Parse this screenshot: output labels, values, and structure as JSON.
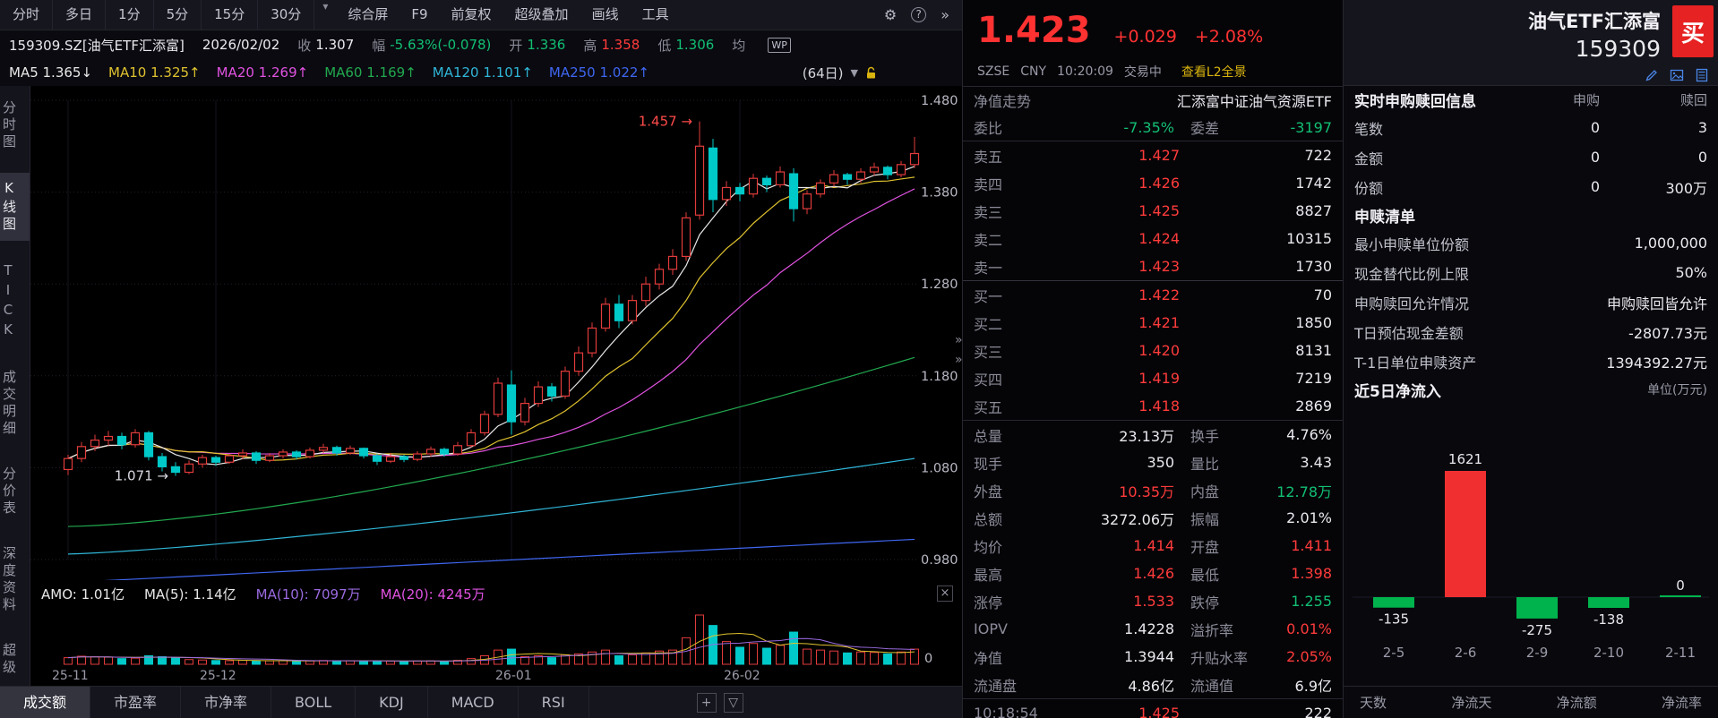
{
  "ui": {
    "gear_glyph": "⚙",
    "help_glyph": "?",
    "more_glyph": "»",
    "caret_down": "▾",
    "range_caret": "▼",
    "close_glyph": "×",
    "plus_glyph": "+",
    "panel_caret": "▽",
    "collapse_glyph": "»"
  },
  "toolbar": {
    "period_tabs": [
      "分时",
      "多日",
      "1分",
      "5分",
      "15分",
      "30分"
    ],
    "actions": [
      "综合屏",
      "F9",
      "前复权",
      "超级叠加",
      "画线",
      "工具"
    ]
  },
  "quote_bar": {
    "symbol": "159309.SZ[油气ETF汇添富]",
    "date": "2026/02/02",
    "fields": [
      {
        "label": "收",
        "value": "1.307",
        "cls": "w"
      },
      {
        "label": "幅",
        "value": "-5.63%(-0.078)",
        "cls": "g"
      },
      {
        "label": "开",
        "value": "1.336",
        "cls": "g"
      },
      {
        "label": "高",
        "value": "1.358",
        "cls": "r"
      },
      {
        "label": "低",
        "value": "1.306",
        "cls": "g"
      },
      {
        "label": "均",
        "value": "",
        "cls": "w"
      }
    ],
    "wp": "WP"
  },
  "ma_bar": {
    "items": [
      {
        "label": "MA5 1.365↓",
        "color": "#e8e8e8"
      },
      {
        "label": "MA10 1.325↑",
        "color": "#dfc22f"
      },
      {
        "label": "MA20 1.269↑",
        "color": "#e052e0"
      },
      {
        "label": "MA60 1.169↑",
        "color": "#22a94f"
      },
      {
        "label": "MA120 1.101↑",
        "color": "#30b6d8"
      },
      {
        "label": "MA250 1.022↑",
        "color": "#3f66f0"
      }
    ],
    "range_label": "(64日)"
  },
  "sidebar": {
    "items": [
      {
        "label": "分时图",
        "active": false
      },
      {
        "label": "K线图",
        "active": true
      },
      {
        "label": "TICK",
        "active": false
      },
      {
        "label": "成交明细",
        "active": false
      },
      {
        "label": "分价表",
        "active": false
      },
      {
        "label": "深度资料",
        "active": false
      },
      {
        "label": "超级",
        "active": false
      }
    ]
  },
  "volume_bar": {
    "amo": "AMO: 1.01亿",
    "ma5": "MA(5): 1.14亿",
    "ma10": "MA(10): 7097万",
    "ma20": "MA(20): 4245万",
    "zero": "0"
  },
  "bottom_tabs": [
    "成交额",
    "市盈率",
    "市净率",
    "BOLL",
    "KDJ",
    "MACD",
    "RSI"
  ],
  "quote_panel": {
    "price": "1.423",
    "change": "+0.029",
    "pct": "+2.08%",
    "exchange": "SZSE",
    "currency": "CNY",
    "time": "10:20:09",
    "status": "交易中",
    "l2": "查看L2全景",
    "nav_label": "净值走势",
    "nav_name": "汇添富中证油气资源ETF",
    "weibi_label": "委比",
    "weibi": "-7.35%",
    "weicha_label": "委差",
    "weicha": "-3197",
    "asks": [
      {
        "label": "卖五",
        "price": "1.427",
        "vol": "722"
      },
      {
        "label": "卖四",
        "price": "1.426",
        "vol": "1742"
      },
      {
        "label": "卖三",
        "price": "1.425",
        "vol": "8827"
      },
      {
        "label": "卖二",
        "price": "1.424",
        "vol": "10315"
      },
      {
        "label": "卖一",
        "price": "1.423",
        "vol": "1730"
      }
    ],
    "bids": [
      {
        "label": "买一",
        "price": "1.422",
        "vol": "70"
      },
      {
        "label": "买二",
        "price": "1.421",
        "vol": "1850"
      },
      {
        "label": "买三",
        "price": "1.420",
        "vol": "8131"
      },
      {
        "label": "买四",
        "price": "1.419",
        "vol": "7219"
      },
      {
        "label": "买五",
        "price": "1.418",
        "vol": "2869"
      }
    ],
    "stats": [
      {
        "l1": "总量",
        "v1": "23.13万",
        "c1": "w",
        "l2": "换手",
        "v2": "4.76%",
        "c2": "w"
      },
      {
        "l1": "现手",
        "v1": "350",
        "c1": "w",
        "l2": "量比",
        "v2": "3.43",
        "c2": "w"
      },
      {
        "l1": "外盘",
        "v1": "10.35万",
        "c1": "r",
        "l2": "内盘",
        "v2": "12.78万",
        "c2": "g"
      },
      {
        "l1": "总额",
        "v1": "3272.06万",
        "c1": "w",
        "l2": "振幅",
        "v2": "2.01%",
        "c2": "w"
      },
      {
        "l1": "均价",
        "v1": "1.414",
        "c1": "r",
        "l2": "开盘",
        "v2": "1.411",
        "c2": "r"
      },
      {
        "l1": "最高",
        "v1": "1.426",
        "c1": "r",
        "l2": "最低",
        "v2": "1.398",
        "c2": "r"
      },
      {
        "l1": "涨停",
        "v1": "1.533",
        "c1": "r",
        "l2": "跌停",
        "v2": "1.255",
        "c2": "g"
      },
      {
        "l1": "IOPV",
        "v1": "1.4228",
        "c1": "w",
        "l2": "溢折率",
        "v2": "0.01%",
        "c2": "r"
      },
      {
        "l1": "净值",
        "v1": "1.3944",
        "c1": "w",
        "l2": "升贴水率",
        "v2": "2.05%",
        "c2": "r"
      },
      {
        "l1": "流通盘",
        "v1": "4.86亿",
        "c1": "w",
        "l2": "流通值",
        "v2": "6.9亿",
        "c2": "w"
      }
    ],
    "tick_partial": {
      "time": "10:18:54",
      "price": "1.425",
      "vol": "222"
    }
  },
  "title_block": {
    "name": "油气ETF汇添富",
    "code": "159309",
    "buy": "买"
  },
  "etf_panel": {
    "header": "实时申购赎回信息",
    "col1": "申购",
    "col2": "赎回",
    "rows": [
      {
        "label": "笔数",
        "v1": "0",
        "v2": "3"
      },
      {
        "label": "金额",
        "v1": "0",
        "v2": "0"
      },
      {
        "label": "份额",
        "v1": "0",
        "v2": "300万"
      }
    ],
    "list_header": "申赎清单",
    "info_rows": [
      {
        "label": "最小申赎单位份额",
        "value": "1,000,000"
      },
      {
        "label": "现金替代比例上限",
        "value": "50%"
      },
      {
        "label": "申购赎回允许情况",
        "value": "申购赎回皆允许"
      },
      {
        "label": "T日预估现金差额",
        "value": "-2807.73元"
      },
      {
        "label": "T-1日单位申赎资产",
        "value": "1394392.27元"
      }
    ],
    "flow_header": "近5日净流入",
    "flow_unit": "单位(万元)",
    "footer_tabs": [
      "天数",
      "净流天",
      "净流额",
      "净流率"
    ]
  },
  "chart_data": {
    "type": "candlestick",
    "y_ticks": [
      "1.480",
      "1.380",
      "1.280",
      "1.180",
      "1.080",
      "0.980"
    ],
    "x_ticks": [
      {
        "label": "25-11",
        "i": 0
      },
      {
        "label": "25-12",
        "i": 11
      },
      {
        "label": "26-01",
        "i": 33
      },
      {
        "label": "26-02",
        "i": 50
      }
    ],
    "annotations": [
      {
        "text": "1.457",
        "i": 47,
        "price": 1.457,
        "color": "#ff4a4a"
      },
      {
        "text": "1.071",
        "i": 8,
        "price": 1.071,
        "color": "#d8d8e0"
      }
    ],
    "candles": [
      [
        1.078,
        1.094,
        1.072,
        1.09
      ],
      [
        1.09,
        1.108,
        1.086,
        1.103
      ],
      [
        1.103,
        1.116,
        1.098,
        1.11
      ],
      [
        1.11,
        1.12,
        1.104,
        1.114
      ],
      [
        1.114,
        1.118,
        1.1,
        1.105
      ],
      [
        1.105,
        1.122,
        1.102,
        1.118
      ],
      [
        1.118,
        1.12,
        1.088,
        1.092
      ],
      [
        1.092,
        1.096,
        1.076,
        1.081
      ],
      [
        1.081,
        1.086,
        1.071,
        1.075
      ],
      [
        1.075,
        1.088,
        1.073,
        1.084
      ],
      [
        1.084,
        1.094,
        1.08,
        1.091
      ],
      [
        1.091,
        1.093,
        1.082,
        1.086
      ],
      [
        1.086,
        1.095,
        1.084,
        1.093
      ],
      [
        1.093,
        1.1,
        1.089,
        1.096
      ],
      [
        1.096,
        1.098,
        1.084,
        1.088
      ],
      [
        1.088,
        1.096,
        1.086,
        1.093
      ],
      [
        1.093,
        1.1,
        1.09,
        1.097
      ],
      [
        1.097,
        1.099,
        1.089,
        1.092
      ],
      [
        1.092,
        1.102,
        1.09,
        1.099
      ],
      [
        1.099,
        1.106,
        1.096,
        1.102
      ],
      [
        1.102,
        1.104,
        1.093,
        1.096
      ],
      [
        1.096,
        1.104,
        1.094,
        1.101
      ],
      [
        1.101,
        1.102,
        1.09,
        1.093
      ],
      [
        1.093,
        1.095,
        1.083,
        1.087
      ],
      [
        1.087,
        1.096,
        1.085,
        1.092
      ],
      [
        1.092,
        1.094,
        1.086,
        1.089
      ],
      [
        1.089,
        1.098,
        1.087,
        1.095
      ],
      [
        1.095,
        1.103,
        1.092,
        1.1
      ],
      [
        1.1,
        1.102,
        1.092,
        1.095
      ],
      [
        1.095,
        1.108,
        1.093,
        1.104
      ],
      [
        1.104,
        1.122,
        1.102,
        1.118
      ],
      [
        1.118,
        1.142,
        1.115,
        1.138
      ],
      [
        1.138,
        1.178,
        1.135,
        1.172
      ],
      [
        1.17,
        1.186,
        1.116,
        1.13
      ],
      [
        1.13,
        1.156,
        1.126,
        1.15
      ],
      [
        1.15,
        1.174,
        1.146,
        1.168
      ],
      [
        1.168,
        1.172,
        1.152,
        1.158
      ],
      [
        1.158,
        1.19,
        1.155,
        1.185
      ],
      [
        1.185,
        1.212,
        1.18,
        1.205
      ],
      [
        1.205,
        1.238,
        1.2,
        1.232
      ],
      [
        1.232,
        1.265,
        1.228,
        1.258
      ],
      [
        1.258,
        1.268,
        1.232,
        1.24
      ],
      [
        1.24,
        1.268,
        1.236,
        1.262
      ],
      [
        1.262,
        1.288,
        1.256,
        1.28
      ],
      [
        1.28,
        1.302,
        1.274,
        1.296
      ],
      [
        1.296,
        1.318,
        1.29,
        1.31
      ],
      [
        1.31,
        1.358,
        1.305,
        1.352
      ],
      [
        1.355,
        1.457,
        1.35,
        1.43
      ],
      [
        1.428,
        1.438,
        1.358,
        1.372
      ],
      [
        1.372,
        1.392,
        1.365,
        1.385
      ],
      [
        1.385,
        1.39,
        1.37,
        1.378
      ],
      [
        1.378,
        1.4,
        1.374,
        1.395
      ],
      [
        1.395,
        1.398,
        1.38,
        1.388
      ],
      [
        1.388,
        1.408,
        1.385,
        1.402
      ],
      [
        1.4,
        1.406,
        1.348,
        1.362
      ],
      [
        1.362,
        1.382,
        1.356,
        1.378
      ],
      [
        1.378,
        1.394,
        1.374,
        1.39
      ],
      [
        1.39,
        1.404,
        1.386,
        1.399
      ],
      [
        1.399,
        1.401,
        1.388,
        1.394
      ],
      [
        1.394,
        1.406,
        1.39,
        1.402
      ],
      [
        1.402,
        1.412,
        1.398,
        1.407
      ],
      [
        1.407,
        1.409,
        1.394,
        1.399
      ],
      [
        1.399,
        1.414,
        1.396,
        1.41
      ],
      [
        1.41,
        1.44,
        1.406,
        1.422
      ]
    ],
    "volumes": [
      700,
      850,
      800,
      750,
      600,
      650,
      900,
      800,
      700,
      500,
      450,
      400,
      380,
      420,
      350,
      360,
      380,
      340,
      360,
      400,
      350,
      380,
      360,
      340,
      330,
      320,
      340,
      360,
      330,
      420,
      600,
      900,
      1500,
      1600,
      800,
      900,
      700,
      1000,
      1100,
      1300,
      1500,
      900,
      1000,
      1200,
      1400,
      1500,
      2800,
      5200,
      4100,
      2400,
      1800,
      2200,
      1700,
      2000,
      3400,
      1600,
      1500,
      1400,
      1200,
      1300,
      1250,
      1100,
      1300,
      1600
    ],
    "trend_lines": {
      "ma60": {
        "start": 1.016,
        "end": 1.2,
        "curve": 1.5,
        "color": "#22a94f"
      },
      "ma120": {
        "start": 0.986,
        "end": 1.09,
        "curve": 1.3,
        "color": "#30b6d8"
      },
      "ma250": {
        "start": 0.955,
        "end": 1.002,
        "curve": 1.0,
        "color": "#3f66f0"
      }
    },
    "flow_chart": {
      "type": "bar",
      "categories": [
        "2-5",
        "2-6",
        "2-9",
        "2-10",
        "2-11"
      ],
      "values": [
        -135,
        1621,
        -275,
        -138,
        0
      ],
      "title": "近5日净流入",
      "unit": "万元"
    }
  }
}
